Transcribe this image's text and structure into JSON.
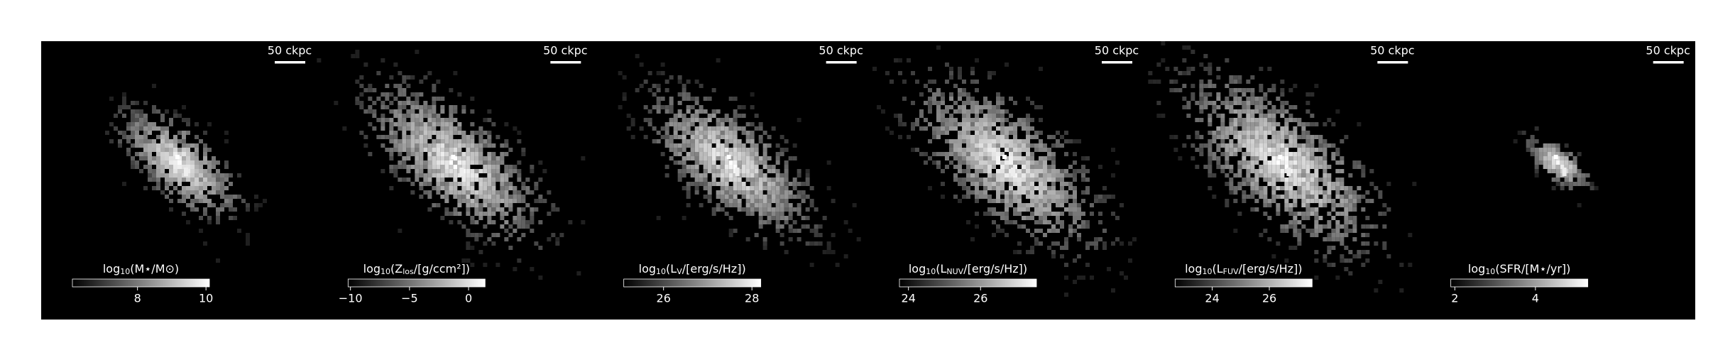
{
  "panels": [
    {
      "scalebar": "50 ckpc",
      "colorbar_label": [
        "log",
        "10",
        "(M⋆/M⊙)"
      ],
      "colorbar_lim": [
        6.1,
        10.1
      ],
      "colorbar_ticks": [
        8,
        10
      ]
    },
    {
      "scalebar": "50 ckpc",
      "colorbar_label": [
        "log",
        "10",
        "(Z",
        "los",
        "/[g/ccm²])"
      ],
      "colorbar_lim": [
        -10.2,
        1.4
      ],
      "colorbar_ticks": [
        {
          "value": -10,
          "label": "−10"
        },
        {
          "value": -5,
          "label": "−5"
        },
        0
      ]
    },
    {
      "scalebar": "50 ckpc",
      "colorbar_label": [
        "log",
        "10",
        "(L",
        "V",
        "/[erg/s/Hz])"
      ],
      "colorbar_lim": [
        25.1,
        28.2
      ],
      "colorbar_ticks": [
        26,
        28
      ]
    },
    {
      "scalebar": "50 ckpc",
      "colorbar_label": [
        "log",
        "10",
        "(L",
        "NUV",
        "/[erg/s/Hz])"
      ],
      "colorbar_lim": [
        23.75,
        27.55
      ],
      "colorbar_ticks": [
        24,
        26
      ]
    },
    {
      "scalebar": "50 ckpc",
      "colorbar_label": [
        "log",
        "10",
        "(L",
        "FUV",
        "/[erg/s/Hz])"
      ],
      "colorbar_lim": [
        22.7,
        27.5
      ],
      "colorbar_ticks": [
        24,
        26
      ]
    },
    {
      "scalebar": "50 ckpc",
      "colorbar_label": [
        "log",
        "10",
        "(SFR/[M⋆/yr])"
      ],
      "colorbar_lim": [
        1.9,
        5.3
      ],
      "colorbar_ticks": [
        2,
        4
      ]
    }
  ]
}
